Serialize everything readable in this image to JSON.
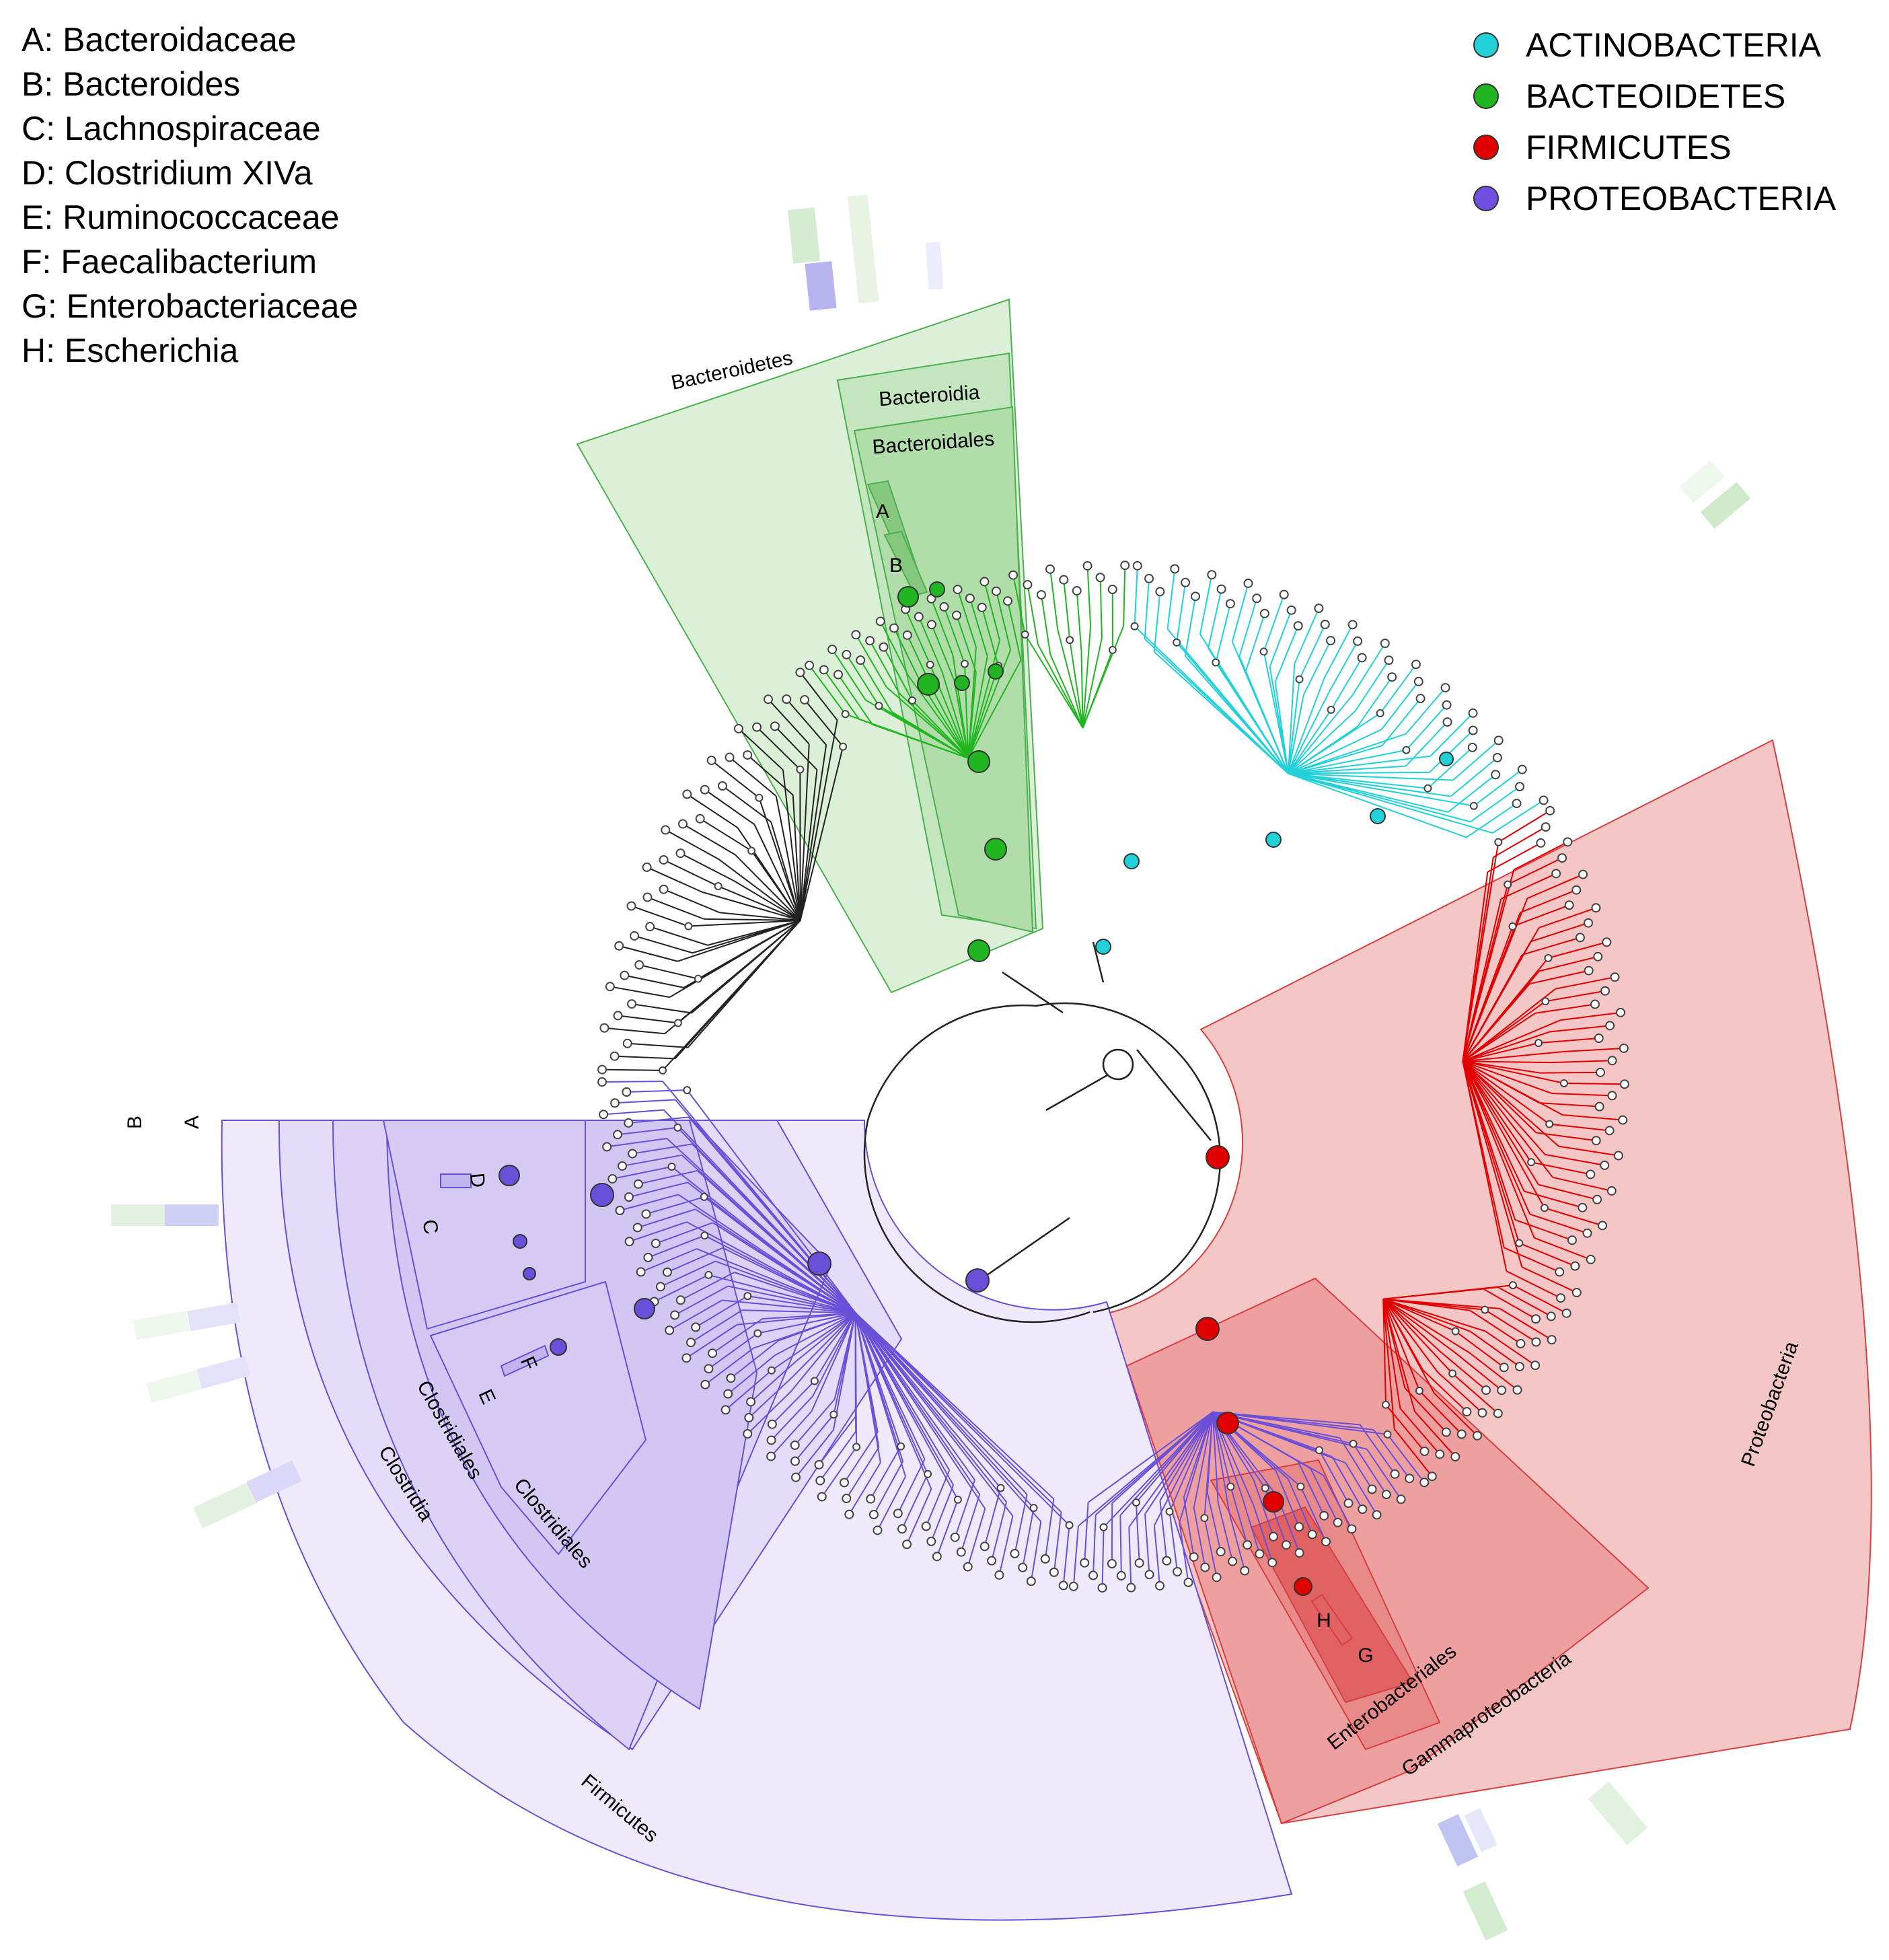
{
  "key": [
    "A: Bacteroidaceae",
    "B: Bacteroides",
    "C: Lachnospiraceae",
    "D: Clostridium XIVa",
    "E: Ruminococcaceae",
    "F: Faecalibacterium",
    "G: Enterobacteriaceae",
    "H: Escherichia"
  ],
  "legend": [
    {
      "label": "ACTINOBACTERIA",
      "color": "#22d0d8"
    },
    {
      "label": "BACTEOIDETES",
      "color": "#22b522"
    },
    {
      "label": "FIRMICUTES",
      "color": "#e00000"
    },
    {
      "label": "PROTEOBACTERIA",
      "color": "#7050e0"
    }
  ],
  "clade_labels": {
    "bacteroidetes": "Bacteroidetes",
    "bacteroidia": "Bacteroidia",
    "bacteroidales": "Bacteroidales",
    "a": "A",
    "b": "B",
    "proteobacteria": "Proteobacteria",
    "gammaproteobacteria": "Gammaproteobacteria",
    "enterobacteriales": "Enterobacteriales",
    "g": "G",
    "h": "H",
    "firmicutes": "Firmicutes",
    "clostridia": "Clostridia",
    "clostridiales_outer": "Clostridiales",
    "clostridiales_inner": "Clostridiales",
    "c": "C",
    "d": "D",
    "e": "E",
    "f": "F"
  },
  "ring_labels": [
    "B",
    "A"
  ],
  "colors": {
    "bacteroidetes": "#22b522",
    "actinobacteria": "#22d0d8",
    "firmicutes_red": "#e00000",
    "proteobacteria_purple": "#6a4fd8"
  }
}
